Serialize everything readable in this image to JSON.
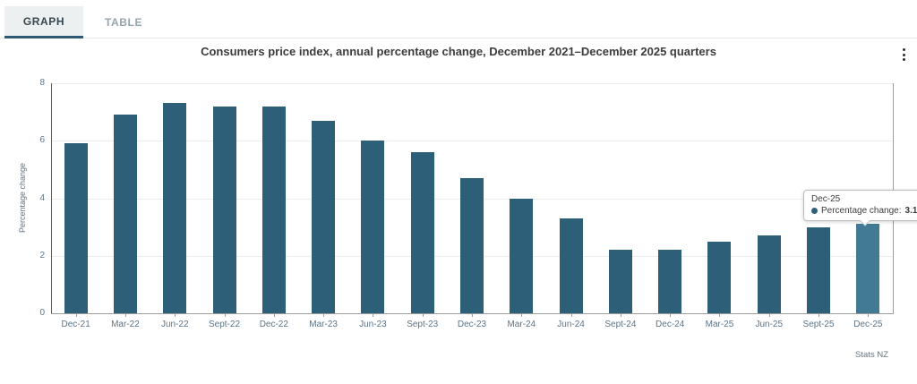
{
  "tabs": {
    "graph_label": "GRAPH",
    "table_label": "TABLE"
  },
  "header": {
    "title": "Consumers price index, annual percentage change, December 2021–December 2025 quarters"
  },
  "chart_data": {
    "type": "bar",
    "title": "Consumers price index, annual percentage change, December 2021–December 2025 quarters",
    "xlabel": "",
    "ylabel": "Percentage change",
    "categories": [
      "Dec-21",
      "Mar-22",
      "Jun-22",
      "Sept-22",
      "Dec-22",
      "Mar-23",
      "Jun-23",
      "Sept-23",
      "Dec-23",
      "Mar-24",
      "Jun-24",
      "Sept-24",
      "Dec-24",
      "Mar-25",
      "Jun-25",
      "Sept-25",
      "Dec-25"
    ],
    "values": [
      5.9,
      6.9,
      7.3,
      7.2,
      7.2,
      6.7,
      6.0,
      5.6,
      4.7,
      4.0,
      3.3,
      2.2,
      2.2,
      2.5,
      2.7,
      3.0,
      3.1
    ],
    "ylim": [
      0,
      8
    ],
    "yticks": [
      0,
      2,
      4,
      6,
      8
    ],
    "grid": true,
    "legend_position": "none",
    "bar_color": "#2d5f79",
    "highlight_color": "#427a94",
    "highlighted_index": 16
  },
  "tooltip": {
    "category": "Dec-25",
    "series_label": "Percentage change:",
    "value": "3.1",
    "bullet_color": "#2d5f79"
  },
  "footer": {
    "source": "Stats NZ"
  }
}
